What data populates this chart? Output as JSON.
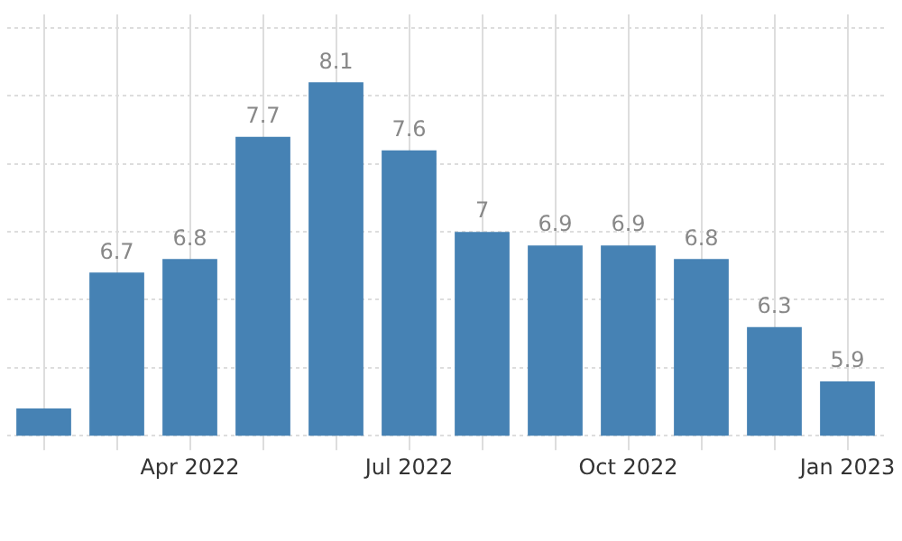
{
  "chart_data": {
    "type": "bar",
    "categories": [
      null,
      null,
      "Apr 2022",
      null,
      null,
      "Jul 2022",
      null,
      null,
      "Oct 2022",
      null,
      null,
      "Jan 2023"
    ],
    "values": [
      5.7,
      6.7,
      6.8,
      7.7,
      8.1,
      7.6,
      7.0,
      6.9,
      6.9,
      6.8,
      6.3,
      5.9
    ],
    "value_labels": [
      null,
      "6.7",
      "6.8",
      "7.7",
      "8.1",
      "7.6",
      "7",
      "6.9",
      "6.9",
      "6.8",
      "6.3",
      "5.9"
    ],
    "color": "#4682b4",
    "ylim": [
      5.5,
      8.6
    ],
    "yticks": [
      {
        "value": 5.5,
        "label": null
      },
      {
        "value": 6,
        "label": null
      },
      {
        "value": 6.5,
        "label": null
      },
      {
        "value": 7,
        "label": null
      },
      {
        "value": 7.5,
        "label": null
      },
      {
        "value": 8,
        "label": null
      },
      {
        "value": 8.5,
        "label": null
      }
    ],
    "tick_labels": "x",
    "grid": true,
    "legend": false
  }
}
